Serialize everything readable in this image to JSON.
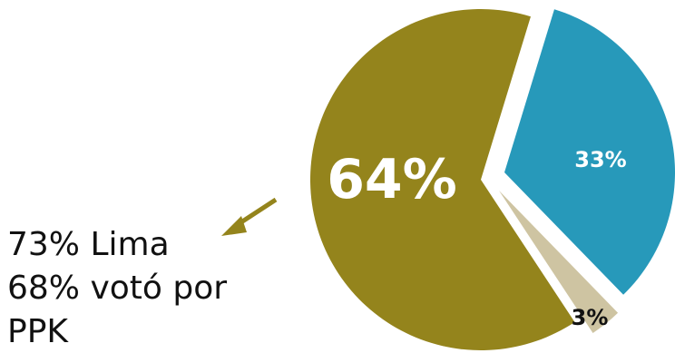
{
  "chart_data": {
    "type": "pie",
    "slices": [
      {
        "label": "64%",
        "value": 64,
        "color": "#94841c"
      },
      {
        "label": "33%",
        "value": 33,
        "color": "#2799ba"
      },
      {
        "label": "3%",
        "value": 3,
        "color": "#cec4a2"
      }
    ],
    "annotation": {
      "lines": [
        "73% Lima",
        "68% votó por",
        "PPK"
      ],
      "arrow_color": "#94841c"
    }
  }
}
